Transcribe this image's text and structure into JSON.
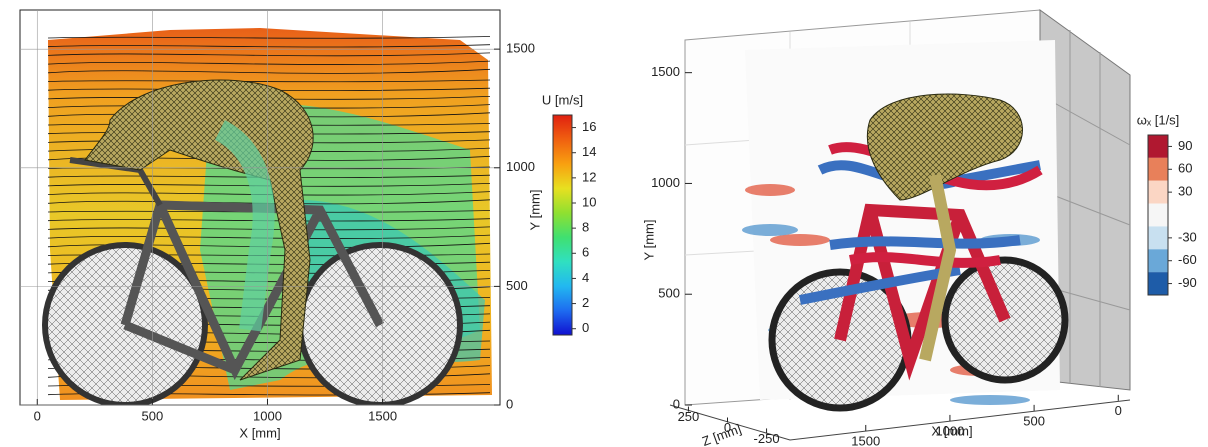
{
  "chart_data": [
    {
      "type": "field",
      "xlabel": "X [mm]",
      "ylabel": "Y [mm]",
      "xlim": [
        -75,
        2010
      ],
      "xticks": [
        0,
        500,
        1000,
        1500
      ],
      "ylim": [
        0,
        1665
      ],
      "yticks": [
        0,
        500,
        1000,
        1500
      ],
      "grid": true,
      "colorbar": {
        "title": "U [m/s]",
        "clim": [
          -0.5,
          17
        ],
        "ticks": [
          0,
          2,
          4,
          6,
          8,
          10,
          12,
          14,
          16
        ],
        "colors": [
          "#1010d0",
          "#1e6cf0",
          "#22b8f0",
          "#30e0c0",
          "#40e070",
          "#90e030",
          "#e8e020",
          "#f8a010",
          "#f06010",
          "#e02010"
        ]
      }
    },
    {
      "type": "field3d",
      "xlabel": "X [mm]",
      "ylabel": "Y [mm]",
      "zlabel": "Z [mm]",
      "xlim": [
        1950,
        -40
      ],
      "xticks": [
        1500,
        1000,
        500,
        0
      ],
      "ylim": [
        0,
        1670
      ],
      "yticks": [
        0,
        500,
        1000,
        1500
      ],
      "zlim": [
        400,
        -400
      ],
      "zticks": [
        250,
        0,
        -250
      ],
      "colorbar": {
        "title": "ωₓ [1/s]",
        "clim": [
          -105,
          105
        ],
        "ticks": [
          90,
          60,
          30,
          -30,
          -60,
          -90
        ],
        "colors": [
          "#b01830",
          "#e8805a",
          "#fbd6c4",
          "#f6f6f6",
          "#c8e0f0",
          "#6aa8d8",
          "#1e5ca8"
        ]
      }
    }
  ]
}
